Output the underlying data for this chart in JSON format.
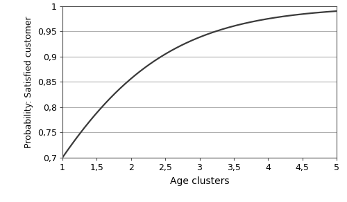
{
  "xlabel": "Age clusters",
  "ylabel": "Probability: Satisfied customer",
  "xlim": [
    1,
    5
  ],
  "ylim": [
    0.7,
    1.0
  ],
  "xticks": [
    1,
    1.5,
    2,
    2.5,
    3,
    3.5,
    4,
    4.5,
    5
  ],
  "yticks": [
    0.7,
    0.75,
    0.8,
    0.85,
    0.9,
    0.95,
    1.0
  ],
  "ytick_labels": [
    "0,7",
    "0,75",
    "0,8",
    "0,85",
    "0,9",
    "0,95",
    "1"
  ],
  "xtick_labels": [
    "1",
    "1,5",
    "2",
    "2,5",
    "3",
    "3,5",
    "4",
    "4,5",
    "5"
  ],
  "line_color": "#3a3a3a",
  "line_width": 1.6,
  "background_color": "#ffffff",
  "grid_color": "#b0b0b0",
  "a": -0.0897,
  "b": 0.937,
  "xlabel_fontsize": 10,
  "ylabel_fontsize": 9,
  "tick_fontsize": 9
}
